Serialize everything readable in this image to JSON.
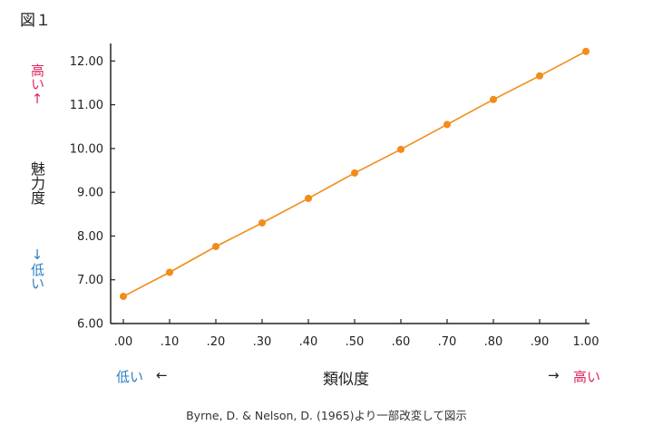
{
  "figure_label": "図１",
  "y_axis": {
    "high_label": "高い↑",
    "title": "魅力度",
    "low_label": "↓低い"
  },
  "x_axis": {
    "low_label": "低い",
    "low_arrow": "←",
    "title": "類似度",
    "high_arrow": "→",
    "high_label": "高い"
  },
  "source_note": "Byrne, D. & Nelson, D. (1965)より一部改変して図示",
  "colors": {
    "series": "#f28c1a",
    "high_accent": "#e0245e",
    "low_accent": "#2a7fc0",
    "axis": "#222222"
  },
  "chart_data": {
    "type": "line",
    "title": "",
    "xlabel": "類似度",
    "ylabel": "魅力度",
    "x": [
      0.0,
      0.1,
      0.2,
      0.3,
      0.4,
      0.5,
      0.6,
      0.7,
      0.8,
      0.9,
      1.0
    ],
    "x_tick_labels": [
      ".00",
      ".10",
      ".20",
      ".30",
      ".40",
      ".50",
      ".60",
      ".70",
      ".80",
      ".90",
      "1.00"
    ],
    "y_ticks": [
      6.0,
      7.0,
      8.0,
      9.0,
      10.0,
      11.0,
      12.0
    ],
    "y_tick_labels": [
      "6.00",
      "7.00",
      "8.00",
      "9.00",
      "10.00",
      "11.00",
      "12.00"
    ],
    "xlim": [
      0.0,
      1.0
    ],
    "ylim": [
      6.0,
      12.4
    ],
    "grid": false,
    "series": [
      {
        "values": [
          6.62,
          7.17,
          7.76,
          8.3,
          8.86,
          9.44,
          9.98,
          10.55,
          11.12,
          11.66,
          12.22
        ]
      }
    ]
  }
}
